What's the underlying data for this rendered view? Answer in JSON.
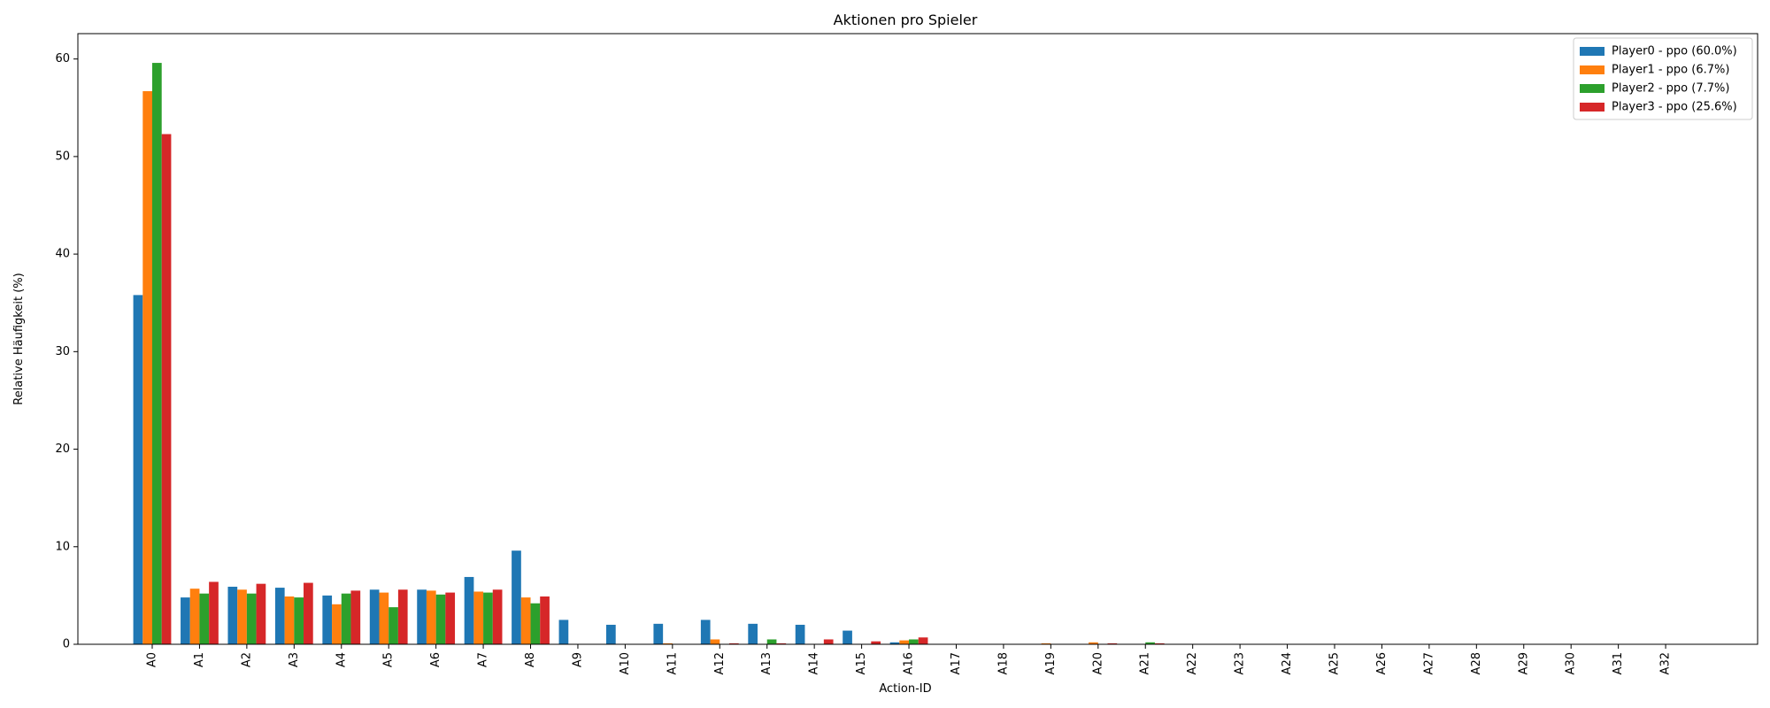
{
  "chart_data": {
    "type": "bar",
    "title": "Aktionen pro Spieler",
    "xlabel": "Action-ID",
    "ylabel": "Relative Häufigkeit (%)",
    "ylim": [
      0,
      62.6
    ],
    "yticks": [
      0,
      10,
      20,
      30,
      40,
      50,
      60
    ],
    "grid": false,
    "legend_position": "top-right",
    "categories": [
      "A0",
      "A1",
      "A2",
      "A3",
      "A4",
      "A5",
      "A6",
      "A7",
      "A8",
      "A9",
      "A10",
      "A11",
      "A12",
      "A13",
      "A14",
      "A15",
      "A16",
      "A17",
      "A18",
      "A19",
      "A20",
      "A21",
      "A22",
      "A23",
      "A24",
      "A25",
      "A26",
      "A27",
      "A28",
      "A29",
      "A30",
      "A31",
      "A32"
    ],
    "series": [
      {
        "name": "Player0 - ppo (60.0%)",
        "color": "#1f77b4",
        "values": [
          35.8,
          4.8,
          5.9,
          5.8,
          5.0,
          5.6,
          5.6,
          6.9,
          9.6,
          2.5,
          2.0,
          2.1,
          2.5,
          2.1,
          2.0,
          1.4,
          0.2,
          0,
          0,
          0,
          0,
          0,
          0,
          0,
          0,
          0,
          0,
          0,
          0,
          0,
          0,
          0,
          0
        ]
      },
      {
        "name": "Player1 - ppo (6.7%)",
        "color": "#ff7f0e",
        "values": [
          56.7,
          5.7,
          5.6,
          4.9,
          4.1,
          5.3,
          5.5,
          5.4,
          4.8,
          0,
          0,
          0.1,
          0.5,
          0,
          0,
          0,
          0.4,
          0,
          0,
          0.1,
          0.2,
          0,
          0,
          0,
          0,
          0,
          0,
          0,
          0,
          0,
          0,
          0,
          0
        ]
      },
      {
        "name": "Player2 - ppo (7.7%)",
        "color": "#2ca02c",
        "values": [
          59.6,
          5.2,
          5.2,
          4.8,
          5.2,
          3.8,
          5.1,
          5.3,
          4.2,
          0,
          0,
          0,
          0,
          0.5,
          0,
          0,
          0.5,
          0,
          0,
          0,
          0,
          0.2,
          0,
          0,
          0,
          0,
          0,
          0,
          0,
          0,
          0,
          0,
          0
        ]
      },
      {
        "name": "Player3 - ppo (25.6%)",
        "color": "#d62728",
        "values": [
          52.3,
          6.4,
          6.2,
          6.3,
          5.5,
          5.6,
          5.3,
          5.6,
          4.9,
          0,
          0,
          0,
          0.1,
          0.1,
          0.5,
          0.3,
          0.7,
          0,
          0,
          0,
          0.1,
          0.1,
          0,
          0,
          0,
          0,
          0,
          0,
          0,
          0,
          0,
          0,
          0
        ]
      }
    ]
  }
}
